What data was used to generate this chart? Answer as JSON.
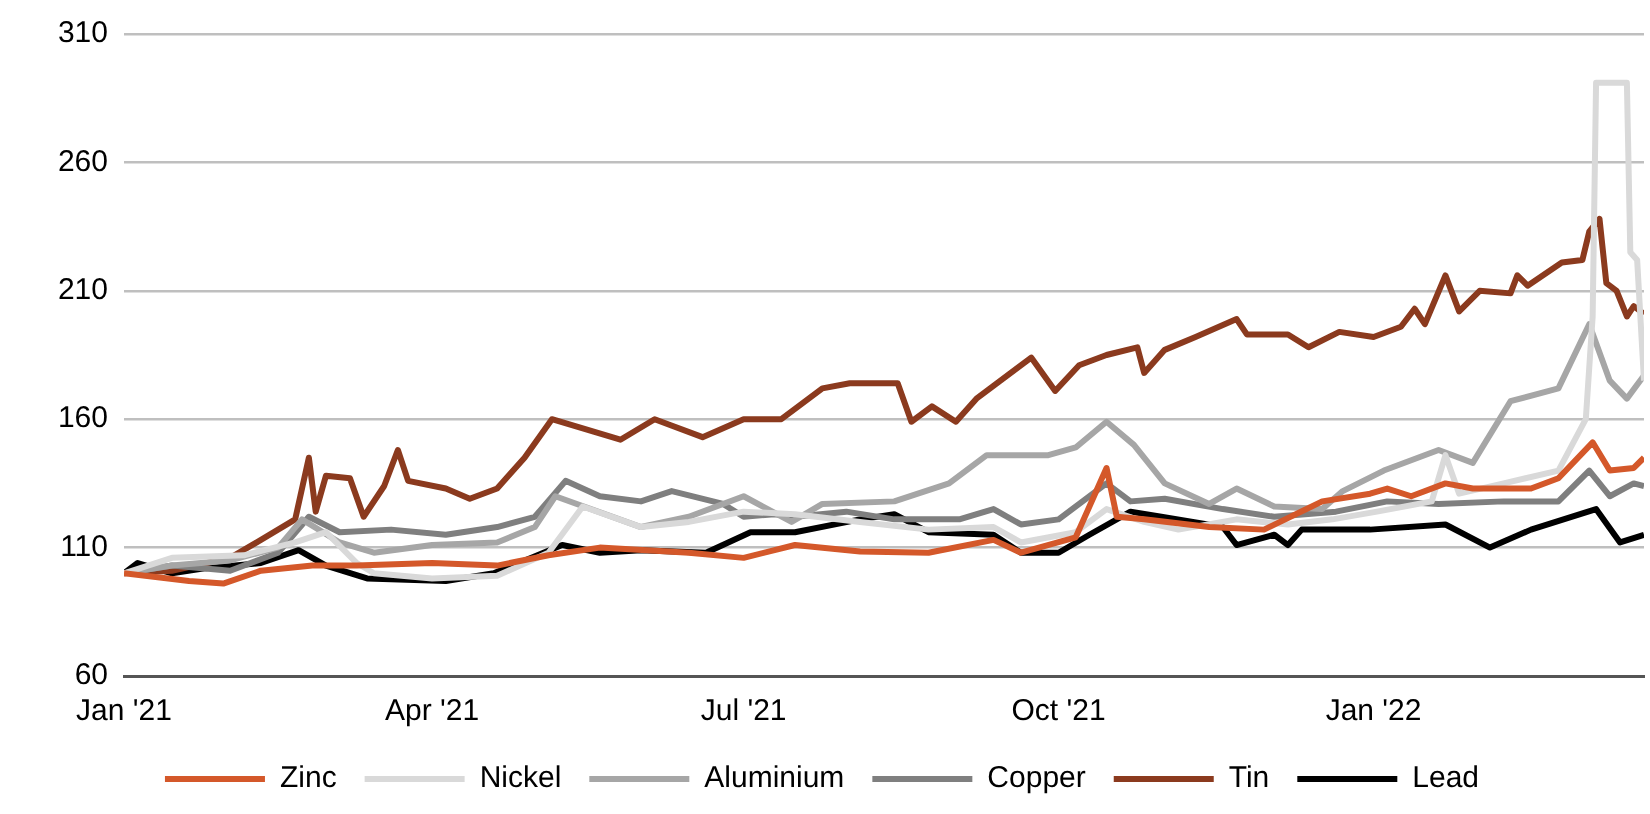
{
  "chart_data": {
    "type": "line",
    "xlim": [
      "2021-01-01",
      "2022-03-21"
    ],
    "xticks": [
      {
        "value": "2021-01-01",
        "label": "Jan '21"
      },
      {
        "value": "2021-04-01",
        "label": "Apr '21"
      },
      {
        "value": "2021-07-01",
        "label": "Jul '21"
      },
      {
        "value": "2021-10-01",
        "label": "Oct '21"
      },
      {
        "value": "2022-01-01",
        "label": "Jan '22"
      }
    ],
    "ylim": [
      60,
      310
    ],
    "yticks": [
      60,
      110,
      160,
      210,
      260,
      310
    ],
    "grid": "y",
    "legend": "bottom",
    "marker": "none",
    "line_style": "solid",
    "series": [
      {
        "name": "Zinc",
        "color": "#d4582a",
        "x": [
          "2021-01-01",
          "2021-01-20",
          "2021-01-30",
          "2021-02-10",
          "2021-02-25",
          "2021-03-10",
          "2021-04-01",
          "2021-04-20",
          "2021-05-05",
          "2021-05-20",
          "2021-06-15",
          "2021-07-01",
          "2021-07-16",
          "2021-08-04",
          "2021-08-24",
          "2021-09-12",
          "2021-09-20",
          "2021-10-06",
          "2021-10-15",
          "2021-10-18",
          "2021-10-26",
          "2021-11-14",
          "2021-11-30",
          "2021-12-17",
          "2021-12-31",
          "2022-01-05",
          "2022-01-12",
          "2022-01-22",
          "2022-01-30",
          "2022-02-16",
          "2022-02-24",
          "2022-03-06",
          "2022-03-11",
          "2022-03-18",
          "2022-03-21"
        ],
        "values": [
          100,
          97,
          96,
          101,
          103,
          103,
          104,
          103,
          107,
          110,
          108,
          106,
          111,
          108.5,
          108,
          113,
          108,
          114,
          141,
          122,
          121,
          118,
          117,
          128,
          131,
          133,
          130,
          135,
          133,
          133,
          137,
          151,
          140,
          141,
          145
        ]
      },
      {
        "name": "Nickel",
        "color": "#d9d9d9",
        "x": [
          "2021-01-01",
          "2021-01-15",
          "2021-02-05",
          "2021-02-20",
          "2021-03-01",
          "2021-03-10",
          "2021-03-15",
          "2021-04-01",
          "2021-04-20",
          "2021-05-05",
          "2021-05-15",
          "2021-06-01",
          "2021-06-15",
          "2021-07-01",
          "2021-07-16",
          "2021-08-04",
          "2021-08-24",
          "2021-09-12",
          "2021-09-20",
          "2021-10-06",
          "2021-10-15",
          "2021-10-26",
          "2021-11-05",
          "2021-11-22",
          "2021-12-07",
          "2021-12-20",
          "2022-01-02",
          "2022-01-18",
          "2022-01-22",
          "2022-01-26",
          "2022-02-08",
          "2022-02-24",
          "2022-03-04",
          "2022-03-06",
          "2022-03-07",
          "2022-03-16",
          "2022-03-17",
          "2022-03-19",
          "2022-03-21"
        ],
        "values": [
          100,
          106,
          107,
          112,
          116,
          104,
          100,
          98,
          99,
          108,
          126,
          118,
          120,
          124,
          123,
          120,
          117,
          118,
          112,
          116,
          125,
          120,
          117,
          121,
          119,
          121,
          124,
          128,
          146,
          131,
          135,
          140,
          160,
          200,
          291,
          291,
          225,
          222,
          175
        ]
      },
      {
        "name": "Aluminium",
        "color": "#a6a6a6",
        "x": [
          "2021-01-01",
          "2021-01-15",
          "2021-02-01",
          "2021-02-15",
          "2021-02-22",
          "2021-03-05",
          "2021-03-15",
          "2021-04-01",
          "2021-04-20",
          "2021-05-01",
          "2021-05-07",
          "2021-06-01",
          "2021-06-15",
          "2021-07-01",
          "2021-07-15",
          "2021-07-24",
          "2021-08-14",
          "2021-08-30",
          "2021-09-10",
          "2021-09-28",
          "2021-10-06",
          "2021-10-15",
          "2021-10-23",
          "2021-11-01",
          "2021-11-14",
          "2021-11-22",
          "2021-12-03",
          "2021-12-17",
          "2021-12-23",
          "2022-01-04",
          "2022-01-20",
          "2022-01-30",
          "2022-02-10",
          "2022-02-24",
          "2022-03-05",
          "2022-03-11",
          "2022-03-16",
          "2022-03-21"
        ],
        "values": [
          100,
          103,
          105,
          110,
          121,
          112,
          108,
          111,
          112,
          118,
          130,
          118,
          122,
          130,
          120,
          127,
          128,
          135,
          146,
          146,
          149,
          159,
          150,
          135,
          127,
          133,
          126,
          125,
          132,
          140,
          148,
          143,
          167,
          172,
          197,
          175,
          168,
          177
        ]
      },
      {
        "name": "Copper",
        "color": "#7f7f7f",
        "x": [
          "2021-01-01",
          "2021-01-15",
          "2021-02-01",
          "2021-02-15",
          "2021-02-24",
          "2021-03-05",
          "2021-03-20",
          "2021-04-05",
          "2021-04-20",
          "2021-05-01",
          "2021-05-10",
          "2021-05-20",
          "2021-06-01",
          "2021-06-10",
          "2021-06-25",
          "2021-07-01",
          "2021-07-10",
          "2021-07-16",
          "2021-07-31",
          "2021-08-14",
          "2021-09-02",
          "2021-09-12",
          "2021-09-20",
          "2021-10-01",
          "2021-10-15",
          "2021-10-22",
          "2021-11-01",
          "2021-11-18",
          "2021-12-03",
          "2021-12-21",
          "2022-01-05",
          "2022-01-20",
          "2022-02-08",
          "2022-02-24",
          "2022-03-05",
          "2022-03-11",
          "2022-03-18",
          "2022-03-21"
        ],
        "values": [
          100,
          103,
          101,
          108,
          122,
          116,
          117,
          115,
          118,
          122,
          136,
          130,
          128,
          132,
          127,
          122,
          123,
          122,
          124,
          121,
          121,
          125,
          119,
          121,
          135,
          128,
          129,
          125,
          122,
          124,
          128,
          127,
          128,
          128,
          140,
          130,
          135,
          134
        ]
      },
      {
        "name": "Tin",
        "color": "#8b3a1e",
        "x": [
          "2021-01-01",
          "2021-01-15",
          "2021-02-01",
          "2021-02-10",
          "2021-02-20",
          "2021-02-24",
          "2021-02-26",
          "2021-03-01",
          "2021-03-08",
          "2021-03-12",
          "2021-03-18",
          "2021-03-22",
          "2021-03-25",
          "2021-04-05",
          "2021-04-12",
          "2021-04-20",
          "2021-04-28",
          "2021-05-06",
          "2021-05-26",
          "2021-06-05",
          "2021-06-19",
          "2021-07-01",
          "2021-07-12",
          "2021-07-24",
          "2021-08-01",
          "2021-08-15",
          "2021-08-19",
          "2021-08-25",
          "2021-09-01",
          "2021-09-07",
          "2021-09-23",
          "2021-09-30",
          "2021-10-07",
          "2021-10-15",
          "2021-10-24",
          "2021-10-26",
          "2021-11-01",
          "2021-11-10",
          "2021-11-22",
          "2021-11-25",
          "2021-12-07",
          "2021-12-13",
          "2021-12-22",
          "2022-01-01",
          "2022-01-09",
          "2022-01-13",
          "2022-01-16",
          "2022-01-22",
          "2022-01-26",
          "2022-02-01",
          "2022-02-10",
          "2022-02-12",
          "2022-02-15",
          "2022-02-25",
          "2022-03-03",
          "2022-03-05",
          "2022-03-08",
          "2022-03-10",
          "2022-03-13",
          "2022-03-16",
          "2022-03-18",
          "2022-03-21"
        ],
        "values": [
          100,
          101,
          106,
          113,
          121,
          145,
          124,
          138,
          137,
          122,
          134,
          148,
          136,
          133,
          129,
          133,
          145,
          160,
          152,
          160,
          153,
          160,
          160,
          172,
          174,
          174,
          159,
          165,
          159,
          168,
          184,
          171,
          181,
          185,
          188,
          178,
          187,
          192,
          199,
          193,
          193,
          188,
          194,
          192,
          196,
          203,
          197,
          216,
          202,
          210,
          209,
          216,
          212,
          221,
          222,
          233,
          238,
          213,
          210,
          200,
          204,
          201
        ]
      },
      {
        "name": "Lead",
        "color": "#000000",
        "x": [
          "2021-01-01",
          "2021-01-05",
          "2021-01-15",
          "2021-01-25",
          "2021-02-10",
          "2021-02-21",
          "2021-03-01",
          "2021-03-13",
          "2021-04-05",
          "2021-04-19",
          "2021-05-09",
          "2021-05-20",
          "2021-06-01",
          "2021-06-20",
          "2021-07-03",
          "2021-07-16",
          "2021-08-04",
          "2021-08-14",
          "2021-08-24",
          "2021-09-12",
          "2021-09-20",
          "2021-10-01",
          "2021-10-10",
          "2021-10-22",
          "2021-10-31",
          "2021-11-18",
          "2021-11-22",
          "2021-12-03",
          "2021-12-07",
          "2021-12-11",
          "2021-12-31",
          "2022-01-22",
          "2022-02-04",
          "2022-02-16",
          "2022-03-07",
          "2022-03-14",
          "2022-03-21"
        ],
        "values": [
          100,
          104,
          100,
          102,
          104,
          109,
          103,
          98,
          97,
          100,
          111,
          108,
          109,
          108,
          116,
          116,
          121,
          123,
          116,
          115,
          108,
          108,
          115,
          124,
          122,
          118,
          111,
          115,
          111,
          117,
          117,
          119,
          110,
          117,
          125,
          112,
          115
        ]
      }
    ]
  }
}
